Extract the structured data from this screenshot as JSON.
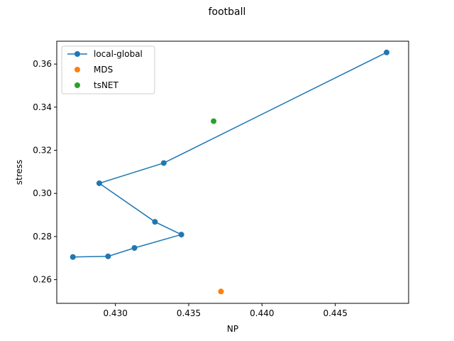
{
  "chart_data": {
    "type": "scatter",
    "title": "football",
    "xlabel": "NP",
    "ylabel": "stress",
    "xlim": [
      0.426,
      0.45
    ],
    "ylim": [
      0.249,
      0.3706
    ],
    "xticks": [
      0.43,
      0.435,
      0.44,
      0.445
    ],
    "xtick_labels": [
      "0.430",
      "0.435",
      "0.440",
      "0.445"
    ],
    "yticks": [
      0.26,
      0.28,
      0.3,
      0.32,
      0.34,
      0.36
    ],
    "ytick_labels": [
      "0.26",
      "0.28",
      "0.30",
      "0.32",
      "0.34",
      "0.36"
    ],
    "grid": false,
    "legend_position": "top-left",
    "series": [
      {
        "name": "local-global",
        "mode": "line+markers",
        "color": "#1f77b4",
        "x": [
          0.4485,
          0.4333,
          0.4289,
          0.4327,
          0.4345,
          0.4313,
          0.4295,
          0.4271
        ],
        "y": [
          0.3654,
          0.3141,
          0.3047,
          0.2868,
          0.2809,
          0.2747,
          0.2708,
          0.2705
        ]
      },
      {
        "name": "MDS",
        "mode": "markers",
        "color": "#ff7f0e",
        "x": [
          0.4372
        ],
        "y": [
          0.2545
        ]
      },
      {
        "name": "tsNET",
        "mode": "markers",
        "color": "#2ca02c",
        "x": [
          0.4367
        ],
        "y": [
          0.3335
        ]
      }
    ]
  }
}
